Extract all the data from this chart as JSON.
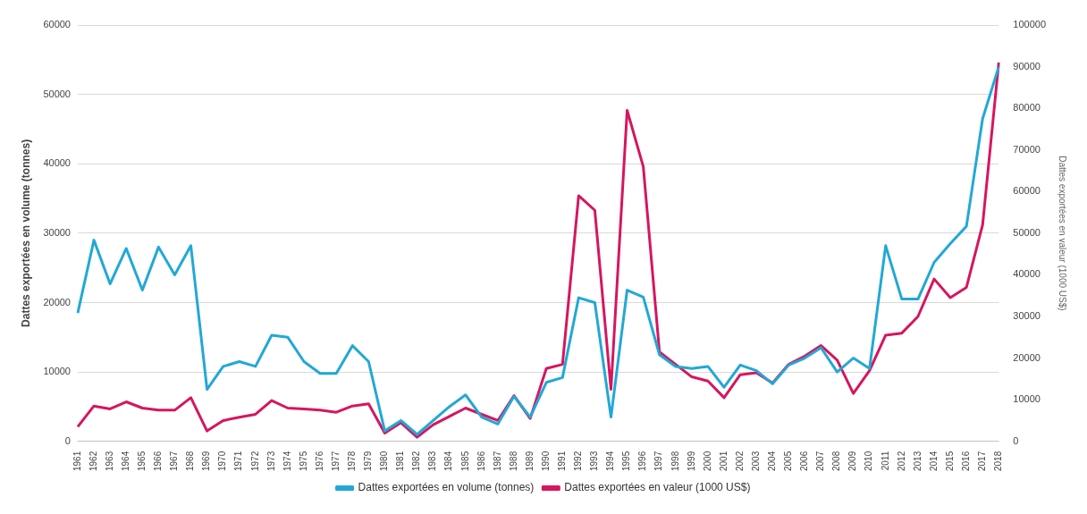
{
  "chart_data": {
    "type": "line",
    "ylabel": "Dattes exportées en volume (tonnes)",
    "y2label": "Dattes exportées en valeur (1000 US$)",
    "categories": [
      "1961",
      "1962",
      "1963",
      "1964",
      "1965",
      "1966",
      "1967",
      "1968",
      "1969",
      "1970",
      "1971",
      "1972",
      "1973",
      "1974",
      "1975",
      "1976",
      "1977",
      "1978",
      "1979",
      "1980",
      "1981",
      "1982",
      "1983",
      "1984",
      "1985",
      "1986",
      "1987",
      "1988",
      "1989",
      "1990",
      "1991",
      "1992",
      "1993",
      "1994",
      "1995",
      "1996",
      "1997",
      "1998",
      "1999",
      "2000",
      "2001",
      "2002",
      "2003",
      "2004",
      "2005",
      "2006",
      "2007",
      "2008",
      "2009",
      "2010",
      "2011",
      "2012",
      "2013",
      "2014",
      "2015",
      "2016",
      "2017",
      "2018"
    ],
    "series": [
      {
        "name": "Dattes exportées en volume (tonnes)",
        "color": "#22a8d6",
        "values": [
          18500,
          29000,
          22700,
          27800,
          21800,
          28000,
          24000,
          28200,
          7500,
          10800,
          11500,
          10800,
          15300,
          15000,
          11500,
          9800,
          9800,
          13800,
          11500,
          1500,
          3000,
          1000,
          3000,
          5000,
          6700,
          3500,
          2500,
          6500,
          3500,
          8500,
          9200,
          20700,
          20000,
          3500,
          21800,
          20800,
          12500,
          10800,
          10500,
          10800,
          7800,
          11000,
          10200,
          8300,
          11000,
          12000,
          13500,
          10000,
          12000,
          10500,
          28200,
          20500,
          20500,
          25800,
          28500,
          31000,
          46500,
          54000
        ]
      },
      {
        "name": "Dattes exportées en valeur (1000 US$)",
        "color": "#d6165f",
        "axis": "y2",
        "values": [
          3500,
          8500,
          7800,
          9500,
          8000,
          7500,
          7500,
          10500,
          2500,
          5000,
          5800,
          6500,
          9800,
          8000,
          7800,
          7500,
          7000,
          8500,
          9000,
          2000,
          4500,
          1000,
          4000,
          6000,
          8000,
          6500,
          5000,
          11000,
          5500,
          17500,
          18500,
          59000,
          55500,
          12500,
          79500,
          66000,
          21500,
          18500,
          15500,
          14500,
          10500,
          16000,
          16500,
          14000,
          18500,
          20500,
          23000,
          19500,
          11500,
          17000,
          25500,
          26000,
          30000,
          39000,
          34500,
          37000,
          52000,
          91000
        ]
      }
    ],
    "ylim": [
      0,
      60000
    ],
    "yticks": [
      0,
      10000,
      20000,
      30000,
      40000,
      50000,
      60000
    ],
    "y2lim": [
      0,
      100000
    ],
    "y2ticks": [
      0,
      10000,
      20000,
      30000,
      40000,
      50000,
      60000,
      70000,
      80000,
      90000,
      100000
    ],
    "grid": "y",
    "legend": "bottom",
    "marker": "none",
    "line_style": "solid"
  }
}
